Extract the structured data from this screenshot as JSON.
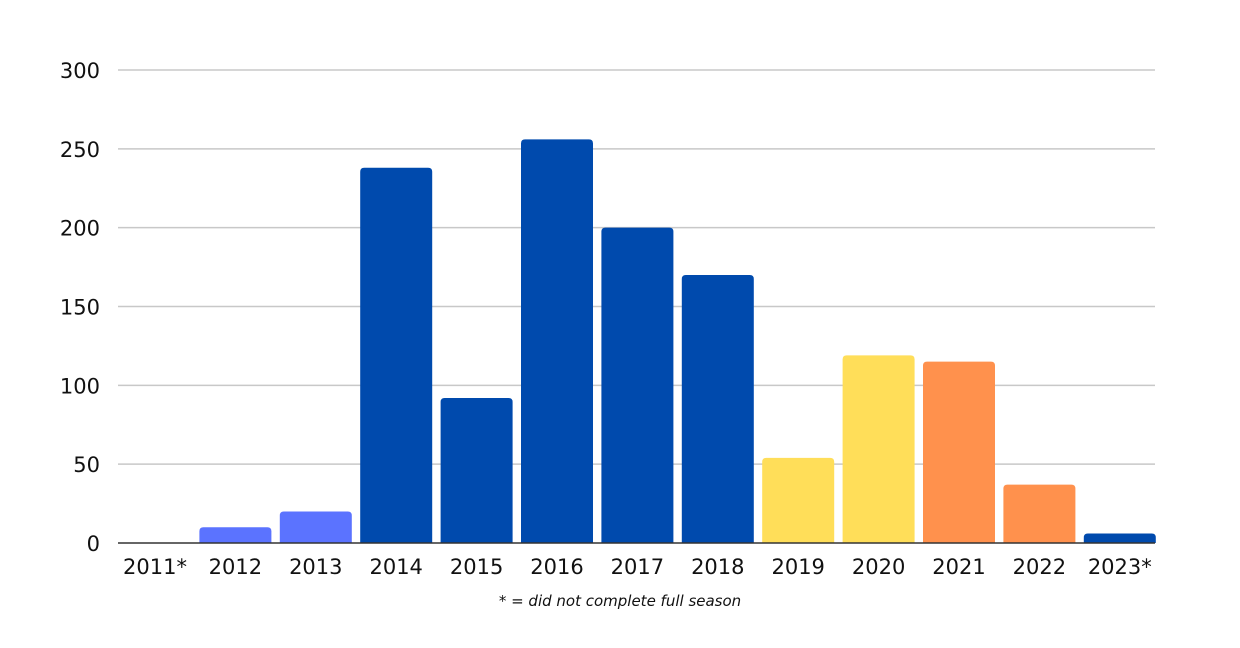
{
  "chart_data": {
    "type": "bar",
    "categories": [
      "2011*",
      "2012",
      "2013",
      "2014",
      "2015",
      "2016",
      "2017",
      "2018",
      "2019",
      "2020",
      "2021",
      "2022",
      "2023*"
    ],
    "values": [
      0,
      10,
      20,
      238,
      92,
      256,
      200,
      170,
      54,
      119,
      115,
      37,
      6
    ],
    "colors": [
      "#5b73ff",
      "#5b73ff",
      "#5b73ff",
      "#004aad",
      "#004aad",
      "#004aad",
      "#004aad",
      "#004aad",
      "#ffde59",
      "#ffde59",
      "#ff914d",
      "#ff914d",
      "#004aad"
    ],
    "yticks": [
      0,
      50,
      100,
      150,
      200,
      250,
      300
    ],
    "ylim": [
      0,
      300
    ],
    "grid": true,
    "legend": "none",
    "footnote": "* = did not complete full season"
  }
}
